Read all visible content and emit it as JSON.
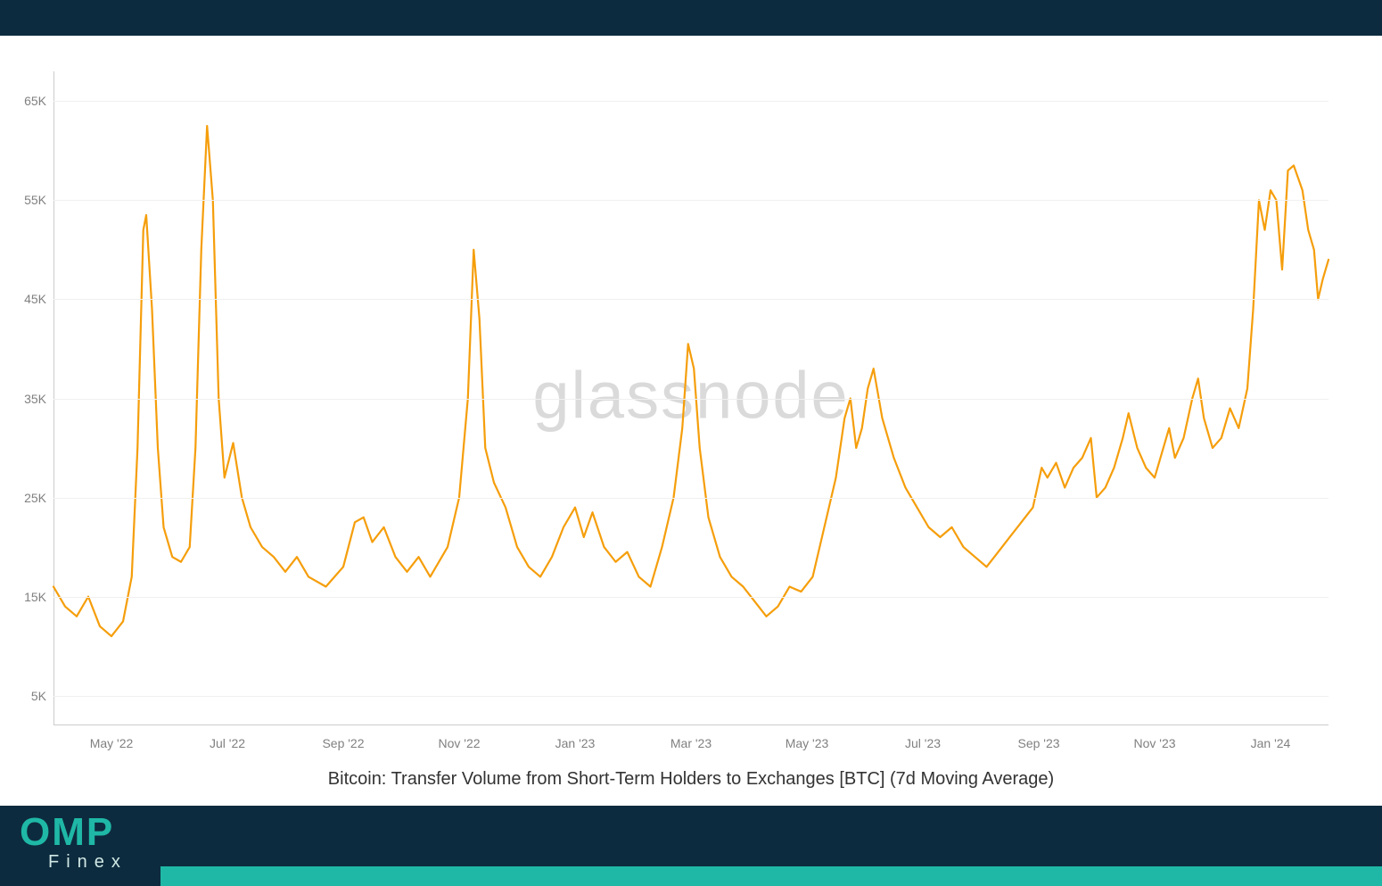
{
  "bands": {
    "color": "#0d2b3e",
    "accent_color": "#1fb8a6"
  },
  "logo": {
    "main": "OMP",
    "sub": "Finex"
  },
  "chart": {
    "type": "line",
    "title": "Bitcoin: Transfer Volume from Short-Term Holders to Exchanges [BTC] (7d Moving Average)",
    "watermark": "glassnode",
    "watermark_color": "rgba(150,150,150,0.35)",
    "watermark_fontsize": 74,
    "line_color": "#f59e0b",
    "line_width": 2.2,
    "background_color": "#ffffff",
    "grid_color": "#f0f0f0",
    "axis_color": "#cccccc",
    "tick_label_color": "#808080",
    "tick_fontsize": 14,
    "title_fontsize": 20,
    "title_color": "#333333",
    "ylim": [
      2000,
      68000
    ],
    "yticks": [
      5000,
      15000,
      25000,
      35000,
      45000,
      55000,
      65000
    ],
    "ytick_labels": [
      "5K",
      "15K",
      "25K",
      "35K",
      "45K",
      "55K",
      "65K"
    ],
    "x_range_months": 22,
    "x_tick_months": [
      1,
      3,
      5,
      7,
      9,
      11,
      13,
      15,
      17,
      19,
      21
    ],
    "x_tick_labels": [
      "May '22",
      "Jul '22",
      "Sep '22",
      "Nov '22",
      "Jan '23",
      "Mar '23",
      "May '23",
      "Jul '23",
      "Sep '23",
      "Nov '23",
      "Jan '24"
    ],
    "series": [
      {
        "x": 0.0,
        "y": 16000
      },
      {
        "x": 0.2,
        "y": 14000
      },
      {
        "x": 0.4,
        "y": 13000
      },
      {
        "x": 0.6,
        "y": 15000
      },
      {
        "x": 0.8,
        "y": 12000
      },
      {
        "x": 1.0,
        "y": 11000
      },
      {
        "x": 1.2,
        "y": 12500
      },
      {
        "x": 1.35,
        "y": 17000
      },
      {
        "x": 1.45,
        "y": 30000
      },
      {
        "x": 1.55,
        "y": 52000
      },
      {
        "x": 1.6,
        "y": 53500
      },
      {
        "x": 1.7,
        "y": 44000
      },
      {
        "x": 1.8,
        "y": 30000
      },
      {
        "x": 1.9,
        "y": 22000
      },
      {
        "x": 2.05,
        "y": 19000
      },
      {
        "x": 2.2,
        "y": 18500
      },
      {
        "x": 2.35,
        "y": 20000
      },
      {
        "x": 2.45,
        "y": 30000
      },
      {
        "x": 2.55,
        "y": 50000
      },
      {
        "x": 2.65,
        "y": 62500
      },
      {
        "x": 2.75,
        "y": 55000
      },
      {
        "x": 2.85,
        "y": 35000
      },
      {
        "x": 2.95,
        "y": 27000
      },
      {
        "x": 3.1,
        "y": 30500
      },
      {
        "x": 3.25,
        "y": 25000
      },
      {
        "x": 3.4,
        "y": 22000
      },
      {
        "x": 3.6,
        "y": 20000
      },
      {
        "x": 3.8,
        "y": 19000
      },
      {
        "x": 4.0,
        "y": 17500
      },
      {
        "x": 4.2,
        "y": 19000
      },
      {
        "x": 4.4,
        "y": 17000
      },
      {
        "x": 4.7,
        "y": 16000
      },
      {
        "x": 5.0,
        "y": 18000
      },
      {
        "x": 5.2,
        "y": 22500
      },
      {
        "x": 5.35,
        "y": 23000
      },
      {
        "x": 5.5,
        "y": 20500
      },
      {
        "x": 5.7,
        "y": 22000
      },
      {
        "x": 5.9,
        "y": 19000
      },
      {
        "x": 6.1,
        "y": 17500
      },
      {
        "x": 6.3,
        "y": 19000
      },
      {
        "x": 6.5,
        "y": 17000
      },
      {
        "x": 6.8,
        "y": 20000
      },
      {
        "x": 7.0,
        "y": 25000
      },
      {
        "x": 7.15,
        "y": 35000
      },
      {
        "x": 7.25,
        "y": 50000
      },
      {
        "x": 7.35,
        "y": 43000
      },
      {
        "x": 7.45,
        "y": 30000
      },
      {
        "x": 7.6,
        "y": 26500
      },
      {
        "x": 7.8,
        "y": 24000
      },
      {
        "x": 8.0,
        "y": 20000
      },
      {
        "x": 8.2,
        "y": 18000
      },
      {
        "x": 8.4,
        "y": 17000
      },
      {
        "x": 8.6,
        "y": 19000
      },
      {
        "x": 8.8,
        "y": 22000
      },
      {
        "x": 9.0,
        "y": 24000
      },
      {
        "x": 9.15,
        "y": 21000
      },
      {
        "x": 9.3,
        "y": 23500
      },
      {
        "x": 9.5,
        "y": 20000
      },
      {
        "x": 9.7,
        "y": 18500
      },
      {
        "x": 9.9,
        "y": 19500
      },
      {
        "x": 10.1,
        "y": 17000
      },
      {
        "x": 10.3,
        "y": 16000
      },
      {
        "x": 10.5,
        "y": 20000
      },
      {
        "x": 10.7,
        "y": 25000
      },
      {
        "x": 10.85,
        "y": 32000
      },
      {
        "x": 10.95,
        "y": 40500
      },
      {
        "x": 11.05,
        "y": 38000
      },
      {
        "x": 11.15,
        "y": 30000
      },
      {
        "x": 11.3,
        "y": 23000
      },
      {
        "x": 11.5,
        "y": 19000
      },
      {
        "x": 11.7,
        "y": 17000
      },
      {
        "x": 11.9,
        "y": 16000
      },
      {
        "x": 12.1,
        "y": 14500
      },
      {
        "x": 12.3,
        "y": 13000
      },
      {
        "x": 12.5,
        "y": 14000
      },
      {
        "x": 12.7,
        "y": 16000
      },
      {
        "x": 12.9,
        "y": 15500
      },
      {
        "x": 13.1,
        "y": 17000
      },
      {
        "x": 13.3,
        "y": 22000
      },
      {
        "x": 13.5,
        "y": 27000
      },
      {
        "x": 13.65,
        "y": 33000
      },
      {
        "x": 13.75,
        "y": 35000
      },
      {
        "x": 13.85,
        "y": 30000
      },
      {
        "x": 13.95,
        "y": 32000
      },
      {
        "x": 14.05,
        "y": 36000
      },
      {
        "x": 14.15,
        "y": 38000
      },
      {
        "x": 14.3,
        "y": 33000
      },
      {
        "x": 14.5,
        "y": 29000
      },
      {
        "x": 14.7,
        "y": 26000
      },
      {
        "x": 14.9,
        "y": 24000
      },
      {
        "x": 15.1,
        "y": 22000
      },
      {
        "x": 15.3,
        "y": 21000
      },
      {
        "x": 15.5,
        "y": 22000
      },
      {
        "x": 15.7,
        "y": 20000
      },
      {
        "x": 15.9,
        "y": 19000
      },
      {
        "x": 16.1,
        "y": 18000
      },
      {
        "x": 16.3,
        "y": 19500
      },
      {
        "x": 16.5,
        "y": 21000
      },
      {
        "x": 16.7,
        "y": 22500
      },
      {
        "x": 16.9,
        "y": 24000
      },
      {
        "x": 17.05,
        "y": 28000
      },
      {
        "x": 17.15,
        "y": 27000
      },
      {
        "x": 17.3,
        "y": 28500
      },
      {
        "x": 17.45,
        "y": 26000
      },
      {
        "x": 17.6,
        "y": 28000
      },
      {
        "x": 17.75,
        "y": 29000
      },
      {
        "x": 17.9,
        "y": 31000
      },
      {
        "x": 18.0,
        "y": 25000
      },
      {
        "x": 18.15,
        "y": 26000
      },
      {
        "x": 18.3,
        "y": 28000
      },
      {
        "x": 18.45,
        "y": 31000
      },
      {
        "x": 18.55,
        "y": 33500
      },
      {
        "x": 18.7,
        "y": 30000
      },
      {
        "x": 18.85,
        "y": 28000
      },
      {
        "x": 19.0,
        "y": 27000
      },
      {
        "x": 19.15,
        "y": 30000
      },
      {
        "x": 19.25,
        "y": 32000
      },
      {
        "x": 19.35,
        "y": 29000
      },
      {
        "x": 19.5,
        "y": 31000
      },
      {
        "x": 19.65,
        "y": 35000
      },
      {
        "x": 19.75,
        "y": 37000
      },
      {
        "x": 19.85,
        "y": 33000
      },
      {
        "x": 20.0,
        "y": 30000
      },
      {
        "x": 20.15,
        "y": 31000
      },
      {
        "x": 20.3,
        "y": 34000
      },
      {
        "x": 20.45,
        "y": 32000
      },
      {
        "x": 20.6,
        "y": 36000
      },
      {
        "x": 20.7,
        "y": 44000
      },
      {
        "x": 20.8,
        "y": 55000
      },
      {
        "x": 20.9,
        "y": 52000
      },
      {
        "x": 21.0,
        "y": 56000
      },
      {
        "x": 21.1,
        "y": 55000
      },
      {
        "x": 21.2,
        "y": 48000
      },
      {
        "x": 21.3,
        "y": 58000
      },
      {
        "x": 21.4,
        "y": 58500
      },
      {
        "x": 21.55,
        "y": 56000
      },
      {
        "x": 21.65,
        "y": 52000
      },
      {
        "x": 21.75,
        "y": 50000
      },
      {
        "x": 21.82,
        "y": 45000
      },
      {
        "x": 21.9,
        "y": 47000
      },
      {
        "x": 22.0,
        "y": 49000
      }
    ]
  }
}
